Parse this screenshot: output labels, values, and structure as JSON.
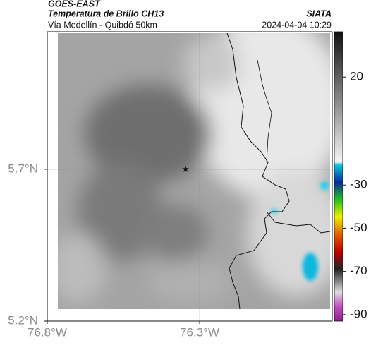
{
  "header": {
    "product": "GOES-EAST",
    "title": "Temperatura de Brillo CH13",
    "source": "SIATA",
    "subtitle": "Vía Medellín - Quibdó 50km",
    "timestamp": "2024-04-04 10:29"
  },
  "chart_data": {
    "type": "map",
    "xlim": [
      -76.8,
      -75.865
    ],
    "ylim": [
      5.2,
      6.153
    ],
    "xticks": [
      {
        "value": -76.8,
        "label": "76.8°W"
      },
      {
        "value": -76.3,
        "label": "76.3°W"
      }
    ],
    "yticks": [
      {
        "value": 5.2,
        "label": "5.2°N"
      },
      {
        "value": 5.7,
        "label": "5.7°N"
      }
    ],
    "grid": true,
    "marker": {
      "x": -76.346,
      "y": 5.7
    },
    "colorbar": {
      "lim": [
        -93,
        41
      ],
      "ticks": [
        20,
        -30,
        -50,
        -70,
        -90
      ]
    }
  }
}
